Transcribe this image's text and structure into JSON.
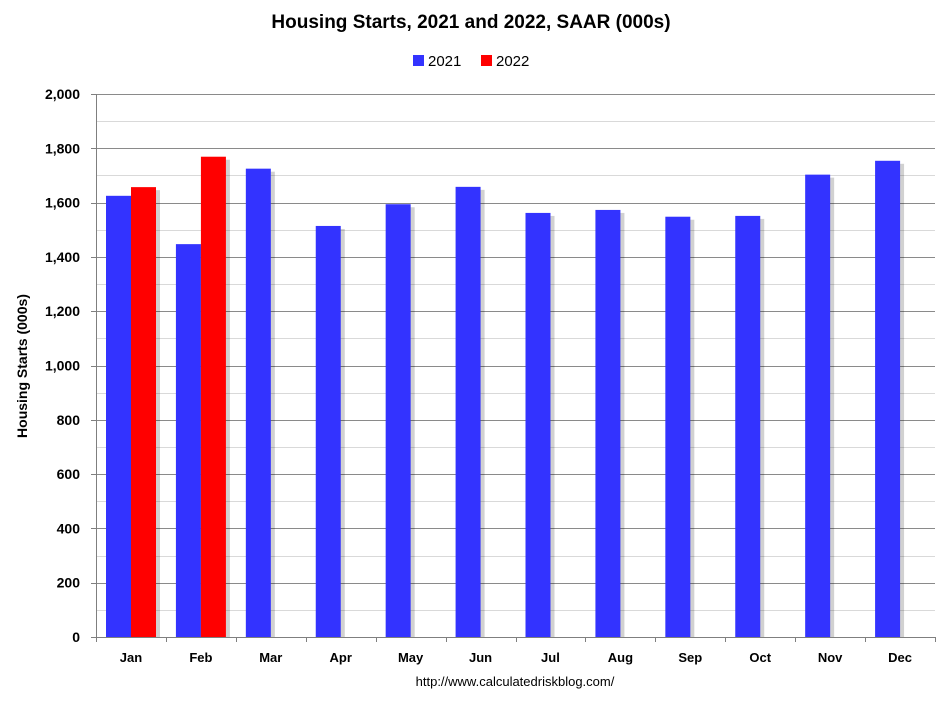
{
  "chart_data": {
    "type": "bar",
    "title": "Housing Starts,  2021 and 2022, SAAR (000s)",
    "ylabel": "Housing Starts (000s)",
    "xlabel": "",
    "categories": [
      "Jan",
      "Feb",
      "Mar",
      "Apr",
      "May",
      "Jun",
      "Jul",
      "Aug",
      "Sep",
      "Oct",
      "Nov",
      "Dec"
    ],
    "series": [
      {
        "name": "2021",
        "color": "#3333ff",
        "values": [
          1625,
          1447,
          1725,
          1514,
          1594,
          1658,
          1562,
          1573,
          1548,
          1551,
          1703,
          1754
        ]
      },
      {
        "name": "2022",
        "color": "#ff0000",
        "values": [
          1657,
          1769,
          null,
          null,
          null,
          null,
          null,
          null,
          null,
          null,
          null,
          null
        ]
      }
    ],
    "ylim": [
      0,
      2000
    ],
    "yticks": [
      0,
      200,
      400,
      600,
      800,
      1000,
      1200,
      1400,
      1600,
      1800,
      2000
    ],
    "ytick_labels": [
      "0",
      "200",
      "400",
      "600",
      "800",
      "1,000",
      "1,200",
      "1,400",
      "1,600",
      "1,800",
      "2,000"
    ],
    "grid": true,
    "legend_position": "top-center",
    "source": "http://www.calculatedriskblog.com/"
  }
}
